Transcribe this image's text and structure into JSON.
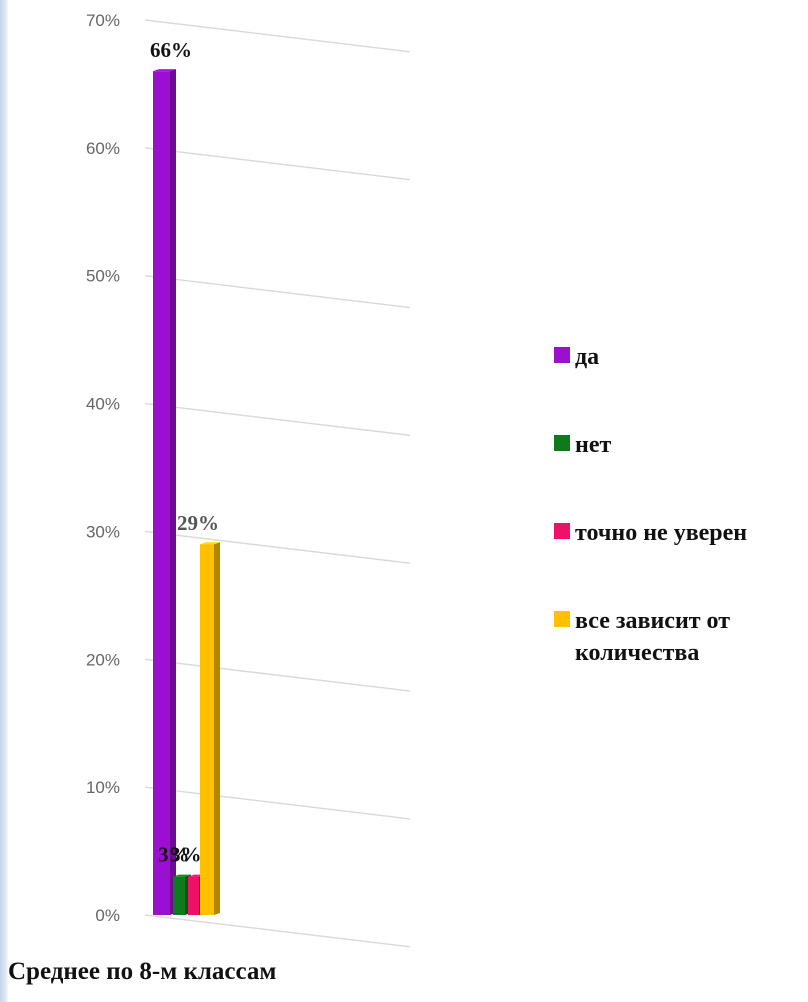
{
  "chart_data": {
    "type": "bar",
    "title": "",
    "xlabel": "",
    "ylabel": "",
    "ylim": [
      0,
      70
    ],
    "y_ticks": [
      "0%",
      "10%",
      "20%",
      "30%",
      "40%",
      "50%",
      "60%",
      "70%"
    ],
    "grid": true,
    "legend_position": "right",
    "categories": [
      ""
    ],
    "series": [
      {
        "name": "да",
        "values": [
          66
        ],
        "label": "66%",
        "color": "#9b0fd0"
      },
      {
        "name": "нет",
        "values": [
          3
        ],
        "label": "3%",
        "color": "#0f7a1c"
      },
      {
        "name": "точно не уверен",
        "values": [
          3
        ],
        "label": "3%",
        "color": "#ee1166"
      },
      {
        "name": "все зависит от количества",
        "values": [
          29
        ],
        "label": "29%",
        "color": "#ffc000"
      }
    ]
  },
  "footer": {
    "caption": "Среднее по 8-м классам"
  }
}
